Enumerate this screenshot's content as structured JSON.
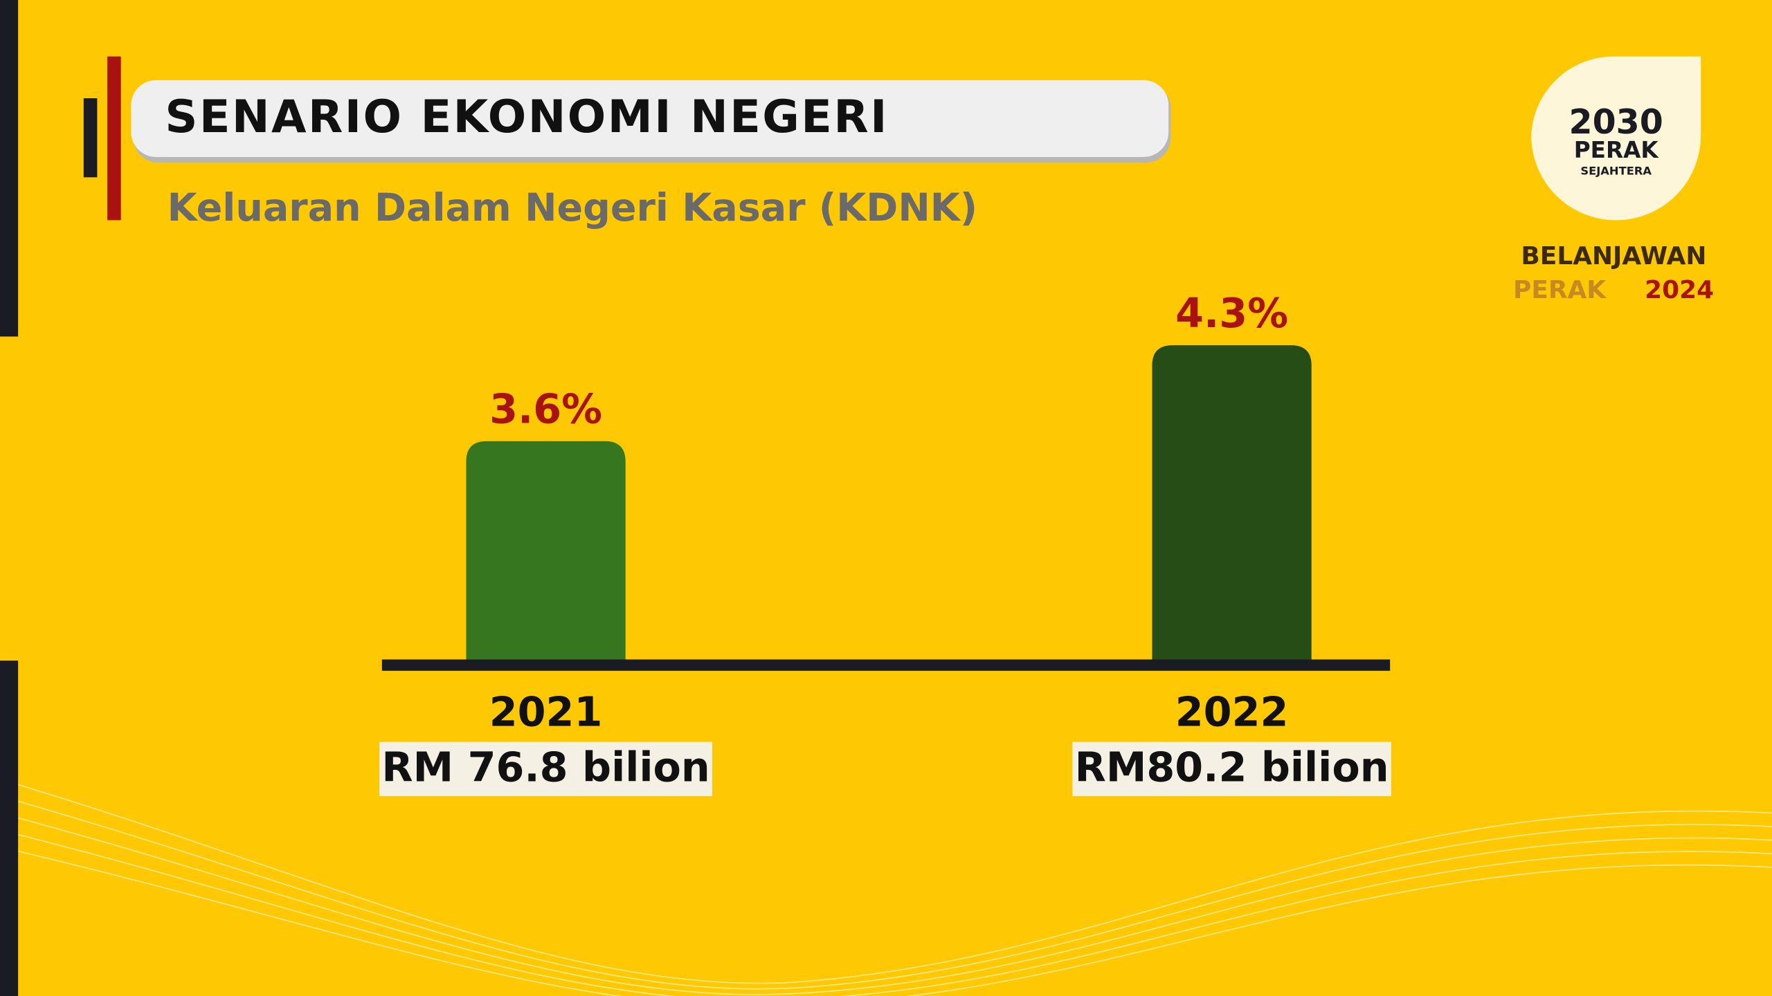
{
  "chart_data": {
    "type": "bar",
    "title": "SENARIO EKONOMI NEGERI",
    "subtitle": "Keluaran Dalam Negeri Kasar (KDNK)",
    "categories": [
      "2021",
      "2022"
    ],
    "category_notes": [
      "RM 76.8 bilion",
      "RM80.2 bilion"
    ],
    "values": [
      3.6,
      4.3
    ],
    "value_labels": [
      "3.6%",
      "4.3%"
    ],
    "colors": [
      "#36761e",
      "#264d16"
    ],
    "value_label_color": "#a8120f",
    "ylim": [
      2,
      4.6
    ],
    "grid": false
  },
  "logo": {
    "top": "2030",
    "middle": "PERAK",
    "bottom": "SEJAHTERA",
    "line1": "BELANJAWAN",
    "line2a": "PERAK",
    "line2b": "2024"
  }
}
